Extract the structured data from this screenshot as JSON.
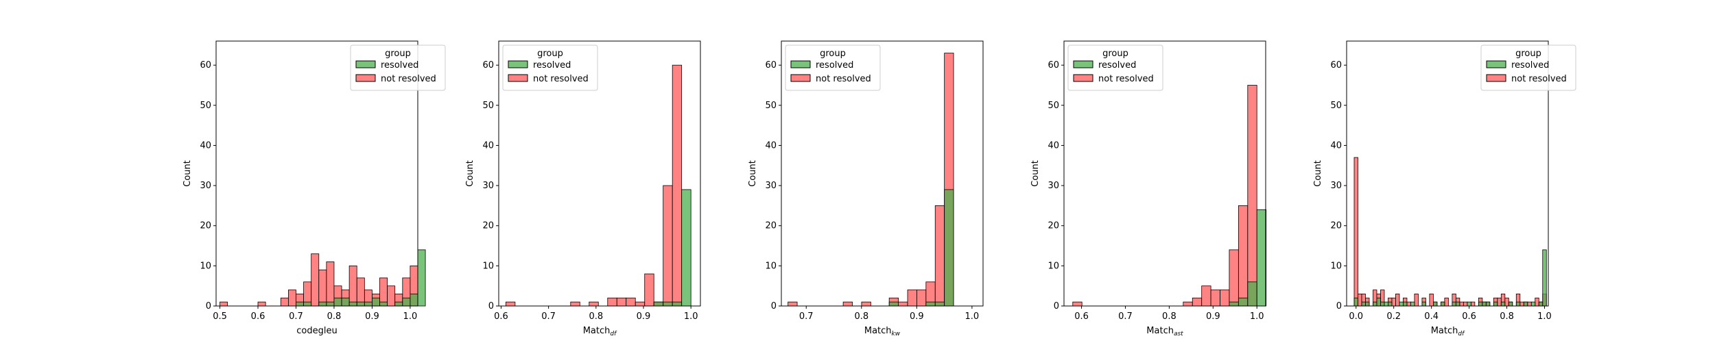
{
  "colors": {
    "resolved_fill": "#4caf4f",
    "not_resolved_fill": "#ff5a5a",
    "overlap_note": "semi-transparent overlap renders olive"
  },
  "chart_data": [
    {
      "type": "histogram",
      "xlabel": "codegleu",
      "ylabel": "Count",
      "xlim": [
        0.49,
        1.02
      ],
      "ylim": [
        0,
        66
      ],
      "xticks": [
        "0.5",
        "0.6",
        "0.7",
        "0.8",
        "0.9",
        "1.0"
      ],
      "yticks": [
        "0",
        "10",
        "20",
        "30",
        "40",
        "50",
        "60"
      ],
      "legend": {
        "title": "group",
        "placement": "upper right",
        "entries": [
          "resolved",
          "not resolved"
        ]
      },
      "bin_start": 0.5,
      "bin_width": 0.02,
      "series": [
        {
          "name": "resolved",
          "values": [
            0,
            0,
            0,
            0,
            0,
            0,
            0,
            0,
            0,
            0,
            1,
            1,
            0,
            1,
            1,
            2,
            2,
            1,
            1,
            1,
            2,
            1,
            0,
            1,
            2,
            3,
            14
          ]
        },
        {
          "name": "not resolved",
          "values": [
            1,
            0,
            0,
            0,
            0,
            1,
            0,
            0,
            2,
            4,
            3,
            6,
            13,
            9,
            11,
            5,
            4,
            10,
            7,
            4,
            3,
            7,
            5,
            3,
            7,
            10,
            0
          ]
        }
      ]
    },
    {
      "type": "histogram",
      "xlabel_main": "Match",
      "xlabel_sub": "df",
      "ylabel": "Count",
      "xlim": [
        0.595,
        1.02
      ],
      "ylim": [
        0,
        66
      ],
      "xticks": [
        "0.6",
        "0.7",
        "0.8",
        "0.9",
        "1.0"
      ],
      "yticks": [
        "0",
        "10",
        "20",
        "30",
        "40",
        "50",
        "60"
      ],
      "legend": {
        "title": "group",
        "placement": "upper left",
        "entries": [
          "resolved",
          "not resolved"
        ]
      },
      "bin_start": 0.61,
      "bin_width": 0.0195,
      "series": [
        {
          "name": "resolved",
          "values": [
            0,
            0,
            0,
            0,
            0,
            0,
            0,
            0,
            0,
            0,
            0,
            0,
            0,
            0,
            0,
            0,
            1,
            1,
            1,
            29
          ]
        },
        {
          "name": "not resolved",
          "values": [
            1,
            0,
            0,
            0,
            0,
            0,
            0,
            1,
            0,
            1,
            0,
            2,
            2,
            2,
            1,
            8,
            1,
            30,
            60,
            0
          ]
        }
      ]
    },
    {
      "type": "histogram",
      "xlabel_main": "Match",
      "xlabel_sub": "kw",
      "ylabel": "Count",
      "xlim": [
        0.655,
        1.02
      ],
      "ylim": [
        0,
        66
      ],
      "xticks": [
        "0.7",
        "0.8",
        "0.9",
        "1.0"
      ],
      "yticks": [
        "0",
        "10",
        "20",
        "30",
        "40",
        "50",
        "60"
      ],
      "legend": {
        "title": "group",
        "placement": "upper left",
        "entries": [
          "resolved",
          "not resolved"
        ]
      },
      "bin_start": 0.667,
      "bin_width": 0.01665,
      "series": [
        {
          "name": "resolved",
          "values": [
            0,
            0,
            0,
            0,
            0,
            0,
            0,
            0,
            0,
            0,
            0,
            1,
            0,
            0,
            0,
            1,
            1,
            29
          ]
        },
        {
          "name": "not resolved",
          "values": [
            1,
            0,
            0,
            0,
            0,
            0,
            1,
            0,
            1,
            0,
            0,
            2,
            1,
            4,
            4,
            6,
            25,
            63
          ]
        }
      ]
    },
    {
      "type": "histogram",
      "xlabel_main": "Match",
      "xlabel_sub": "ast",
      "ylabel": "Count",
      "xlim": [
        0.56,
        1.02
      ],
      "ylim": [
        0,
        66
      ],
      "xticks": [
        "0.6",
        "0.7",
        "0.8",
        "0.9",
        "1.0"
      ],
      "yticks": [
        "0",
        "10",
        "20",
        "30",
        "40",
        "50",
        "60"
      ],
      "legend": {
        "title": "group",
        "placement": "upper left",
        "entries": [
          "resolved",
          "not resolved"
        ]
      },
      "bin_start": 0.58,
      "bin_width": 0.021,
      "series": [
        {
          "name": "resolved",
          "values": [
            0,
            0,
            0,
            0,
            0,
            0,
            0,
            0,
            0,
            0,
            0,
            0,
            0,
            0,
            0,
            0,
            0,
            1,
            2,
            6,
            24
          ]
        },
        {
          "name": "not resolved",
          "values": [
            1,
            0,
            0,
            0,
            0,
            0,
            0,
            0,
            0,
            0,
            0,
            0,
            1,
            2,
            5,
            4,
            4,
            14,
            25,
            55,
            0
          ]
        }
      ]
    },
    {
      "type": "histogram",
      "xlabel_main": "Match",
      "xlabel_sub": "df",
      "ylabel": "Count",
      "xlim": [
        -0.05,
        1.02
      ],
      "ylim": [
        0,
        66
      ],
      "xticks": [
        "0.0",
        "0.2",
        "0.4",
        "0.6",
        "0.8",
        "1.0"
      ],
      "yticks": [
        "0",
        "10",
        "20",
        "30",
        "40",
        "50",
        "60"
      ],
      "legend": {
        "title": "group",
        "placement": "upper right",
        "entries": [
          "resolved",
          "not resolved"
        ]
      },
      "bin_start": -0.01,
      "bin_width": 0.02,
      "series": [
        {
          "name": "resolved",
          "values": [
            2,
            0,
            1,
            1,
            0,
            1,
            2,
            1,
            1,
            1,
            0,
            0,
            1,
            1,
            0,
            1,
            0,
            0,
            1,
            0,
            0,
            1,
            0,
            1,
            0,
            0,
            1,
            1,
            0,
            0,
            1,
            0,
            0,
            1,
            1,
            1,
            0,
            1,
            0,
            1,
            0,
            1,
            0,
            1,
            0,
            1,
            0,
            1,
            0,
            1,
            14
          ]
        },
        {
          "name": "not resolved",
          "values": [
            37,
            3,
            3,
            2,
            0,
            4,
            3,
            4,
            0,
            2,
            2,
            3,
            0,
            2,
            1,
            0,
            3,
            0,
            2,
            0,
            3,
            1,
            0,
            1,
            2,
            0,
            3,
            2,
            1,
            1,
            0,
            1,
            0,
            2,
            1,
            1,
            0,
            2,
            2,
            3,
            2,
            1,
            0,
            3,
            1,
            1,
            1,
            0,
            2,
            1,
            3
          ]
        }
      ]
    }
  ]
}
